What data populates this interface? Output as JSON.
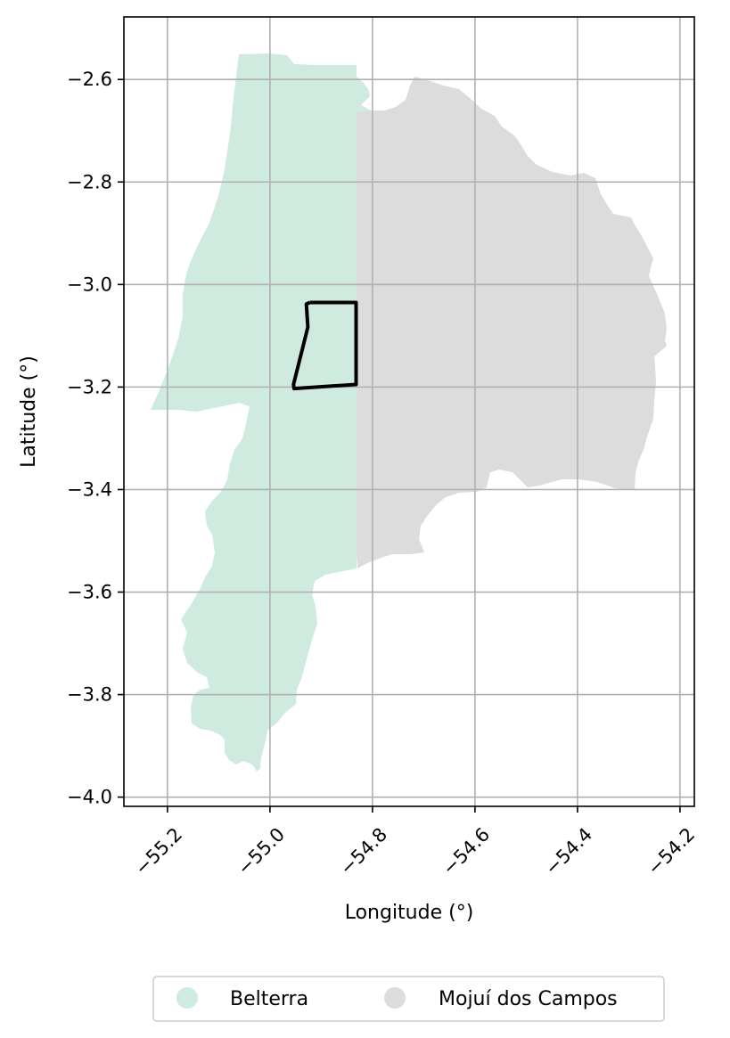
{
  "map": {
    "xlabel": "Longitude (°)",
    "ylabel": "Latitude (°)",
    "x_ticks": [
      {
        "value": -55.2,
        "label": "−55.2"
      },
      {
        "value": -55.0,
        "label": "−55.0"
      },
      {
        "value": -54.8,
        "label": "−54.8"
      },
      {
        "value": -54.6,
        "label": "−54.6"
      },
      {
        "value": -54.4,
        "label": "−54.4"
      },
      {
        "value": -54.2,
        "label": "−54.2"
      }
    ],
    "y_ticks": [
      {
        "value": -2.6,
        "label": "−2.6"
      },
      {
        "value": -2.8,
        "label": "−2.8"
      },
      {
        "value": -3.0,
        "label": "−3.0"
      },
      {
        "value": -3.2,
        "label": "−3.2"
      },
      {
        "value": -3.4,
        "label": "−3.4"
      },
      {
        "value": -3.6,
        "label": "−3.6"
      },
      {
        "value": -3.8,
        "label": "−3.8"
      },
      {
        "value": -4.0,
        "label": "−4.0"
      }
    ],
    "xlim": [
      -55.285,
      -54.172
    ],
    "ylim": [
      -4.018,
      -2.478
    ],
    "grid": true,
    "legend_placement": "bottom-center",
    "regions": [
      {
        "name": "Belterra",
        "color": "#cfeade"
      },
      {
        "name": "Mojuí dos Campos",
        "color": "#dcdcdc"
      }
    ],
    "study_area": {
      "color": "#000000",
      "boundary": [
        [
          -54.922,
          -3.035
        ],
        [
          -54.832,
          -3.035
        ],
        [
          -54.832,
          -3.195
        ],
        [
          -54.953,
          -3.203
        ],
        [
          -54.954,
          -3.195
        ],
        [
          -54.926,
          -3.083
        ],
        [
          -54.929,
          -3.038
        ]
      ]
    }
  },
  "legend": {
    "items": [
      {
        "label": "Belterra",
        "color": "#cfeade"
      },
      {
        "label": "Mojuí dos Campos",
        "color": "#dcdcdc"
      }
    ]
  }
}
